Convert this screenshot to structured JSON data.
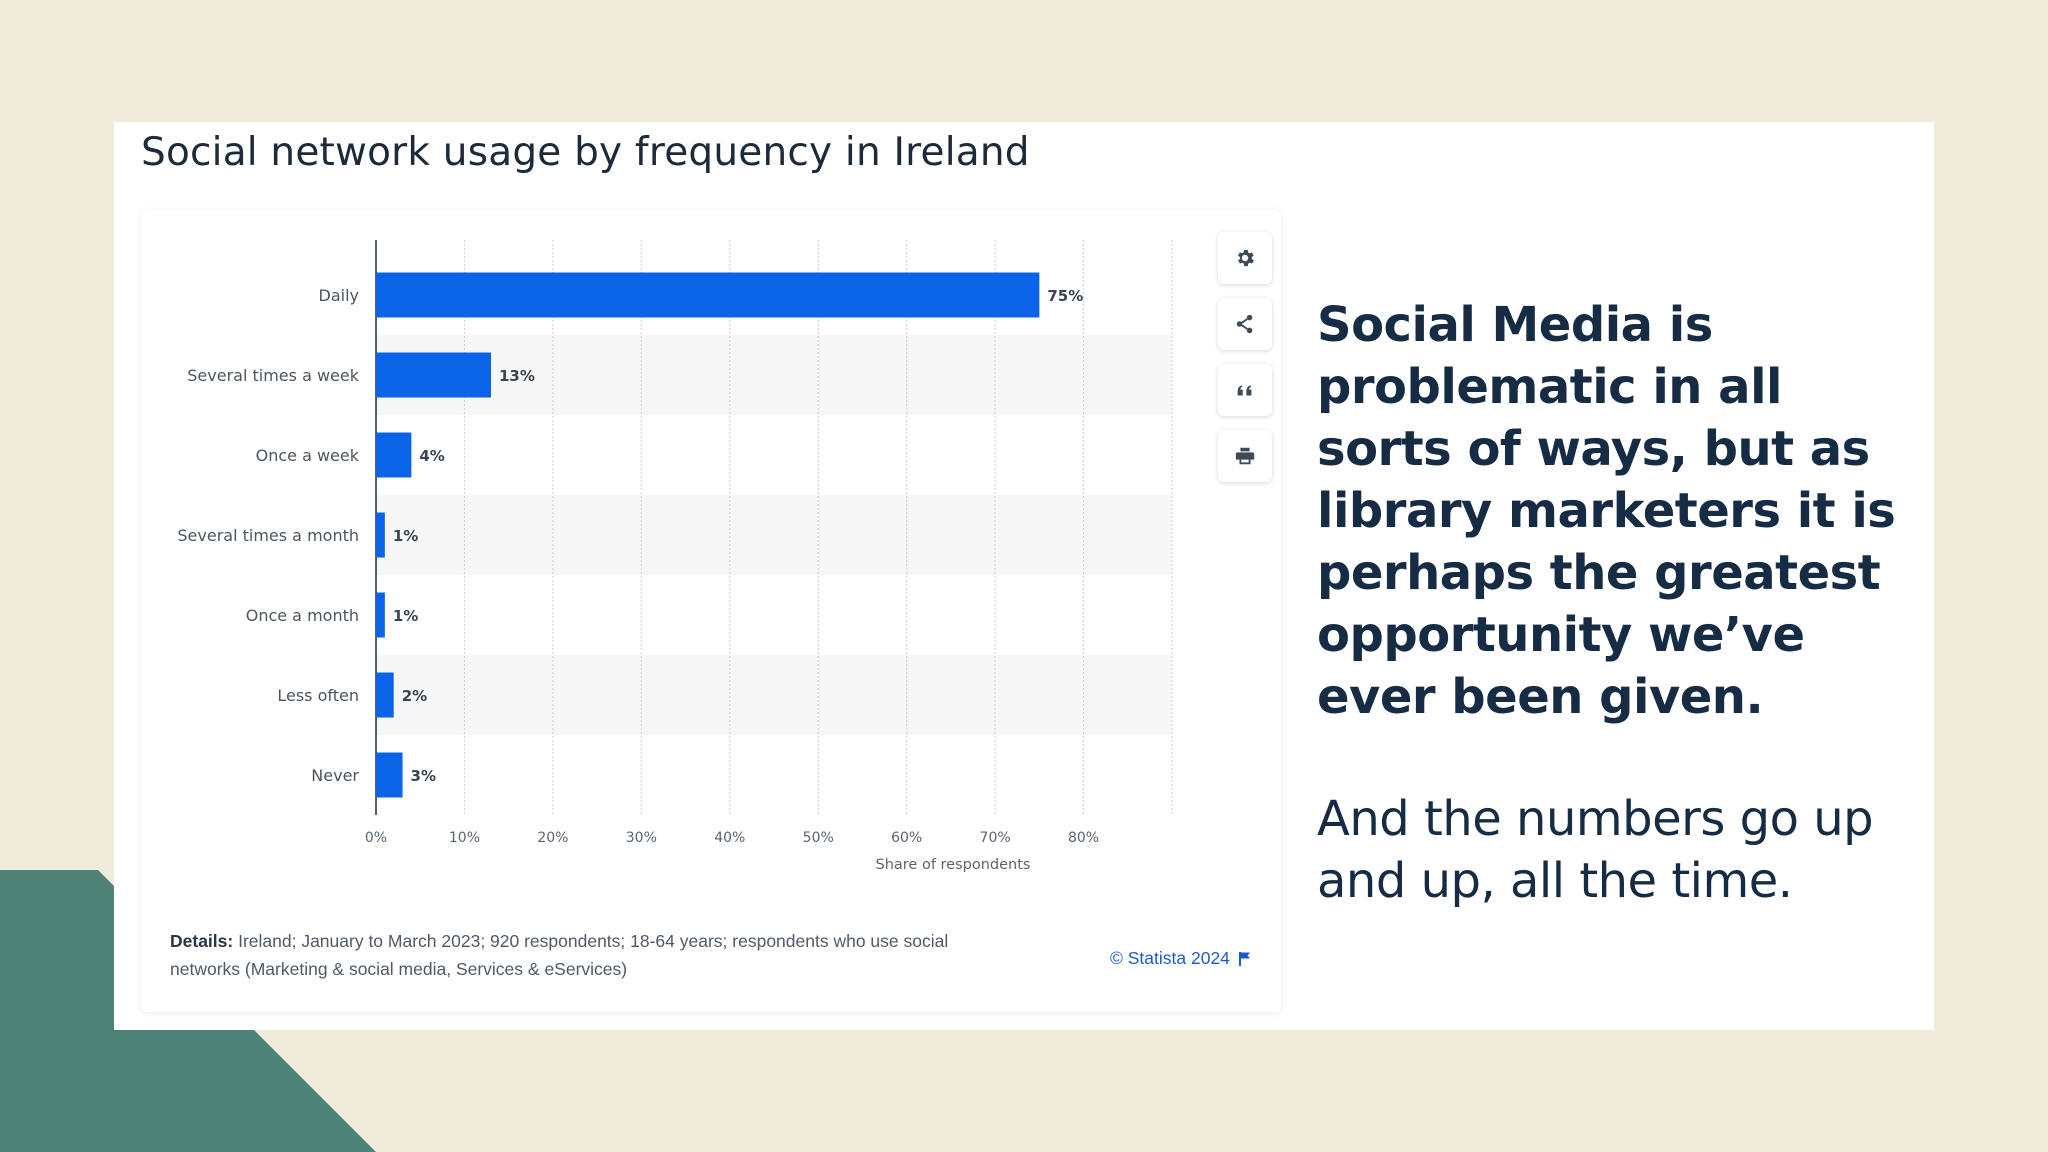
{
  "theme": {
    "background": "#efecdb",
    "accent_shape": "#4e8277",
    "bar_color": "#0b63e8",
    "text_dark": "#162c44",
    "link_color": "#1b5cc8"
  },
  "slide": {
    "headline": "Social Media is problematic in all sorts of ways, but as library marketers it is perhaps the greatest opportunity we’ve ever been given.",
    "subtext": "And the numbers go up and up, all the time."
  },
  "toolbar": {
    "buttons": [
      {
        "name": "settings",
        "icon": "gear-icon"
      },
      {
        "name": "share",
        "icon": "share-icon"
      },
      {
        "name": "cite",
        "icon": "quote-icon"
      },
      {
        "name": "print",
        "icon": "print-icon"
      }
    ]
  },
  "chart_data": {
    "type": "bar",
    "orientation": "horizontal",
    "title": "Social network usage by frequency in Ireland",
    "categories": [
      "Daily",
      "Several times a week",
      "Once a week",
      "Several times a month",
      "Once a month",
      "Less often",
      "Never"
    ],
    "values": [
      75,
      13,
      4,
      1,
      1,
      2,
      3
    ],
    "value_labels": [
      "75%",
      "13%",
      "4%",
      "1%",
      "1%",
      "2%",
      "3%"
    ],
    "xlim": [
      0,
      90
    ],
    "xticks": [
      0,
      10,
      20,
      30,
      40,
      50,
      60,
      70,
      80
    ],
    "xtick_labels": [
      "0%",
      "10%",
      "20%",
      "30%",
      "40%",
      "50%",
      "60%",
      "70%",
      "80%"
    ],
    "xlabel": "Share of respondents",
    "ylabel": "",
    "grid": true,
    "legend": "none",
    "details_label": "Details:",
    "details_text": "Ireland; January to March 2023; 920 respondents; 18-64 years; respondents who use social networks (Marketing & social media, Services & eServices)",
    "source": "© Statista 2024"
  }
}
